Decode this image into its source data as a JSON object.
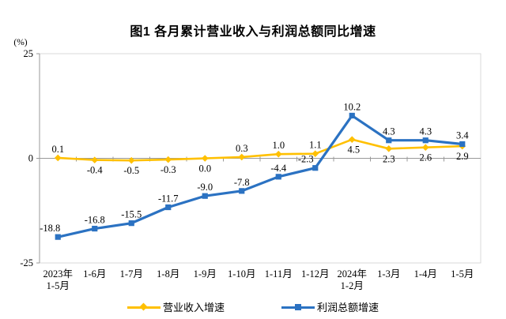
{
  "title": "图1  各月累计营业收入与利润总额同比增速",
  "y_axis": {
    "unit_label": "(%)",
    "tick_labels": [
      "25",
      "0",
      "-25"
    ]
  },
  "chart_data": {
    "type": "line",
    "title": "图1  各月累计营业收入与利润总额同比增速",
    "categories": [
      [
        "2023年",
        "1-5月"
      ],
      [
        "1-6月"
      ],
      [
        "1-7月"
      ],
      [
        "1-8月"
      ],
      [
        "1-9月"
      ],
      [
        "1-10月"
      ],
      [
        "1-11月"
      ],
      [
        "1-12月"
      ],
      [
        "2024年",
        "1-2月"
      ],
      [
        "1-3月"
      ],
      [
        "1-4月"
      ],
      [
        "1-5月"
      ]
    ],
    "series": [
      {
        "name": "营业收入增速",
        "color": "#FFC000",
        "marker": "diamond",
        "values": [
          0.1,
          -0.4,
          -0.5,
          -0.3,
          0.0,
          0.3,
          1.0,
          1.1,
          4.5,
          2.3,
          2.6,
          2.9
        ],
        "labels": [
          "0.1",
          "-0.4",
          "-0.5",
          "-0.3",
          "0.0",
          "0.3",
          "1.0",
          "1.1",
          "4.5",
          "2.3",
          "2.6",
          "2.9"
        ],
        "label_side": [
          "above",
          "below",
          "below",
          "below",
          "below",
          "above",
          "above",
          "above",
          "below",
          "below",
          "below",
          "below"
        ],
        "label_dx": [
          0,
          0,
          0,
          0,
          0,
          0,
          0,
          0,
          2,
          0,
          0,
          0
        ]
      },
      {
        "name": "利润总额增速",
        "color": "#2B72C2",
        "marker": "square",
        "values": [
          -18.8,
          -16.8,
          -15.5,
          -11.7,
          -9.0,
          -7.8,
          -4.4,
          -2.3,
          10.2,
          4.3,
          4.3,
          3.4
        ],
        "labels": [
          "-18.8",
          "-16.8",
          "-15.5",
          "-11.7",
          "-9.0",
          "-7.8",
          "-4.4",
          "-2.3",
          "10.2",
          "4.3",
          "4.3",
          "3.4"
        ],
        "label_side": [
          "above",
          "above",
          "above",
          "above",
          "above",
          "above",
          "above",
          "above",
          "above",
          "above",
          "above",
          "above"
        ],
        "label_dx": [
          -10,
          0,
          0,
          0,
          0,
          0,
          0,
          -12,
          0,
          0,
          0,
          0
        ]
      }
    ],
    "ylabel": "(%)",
    "ylim": [
      -25,
      25
    ],
    "y_ticks": [
      25,
      0,
      -25
    ],
    "grid": false,
    "legend_position": "bottom",
    "axis_color": "#999999",
    "plot_border_color": "#D9D9D9"
  }
}
